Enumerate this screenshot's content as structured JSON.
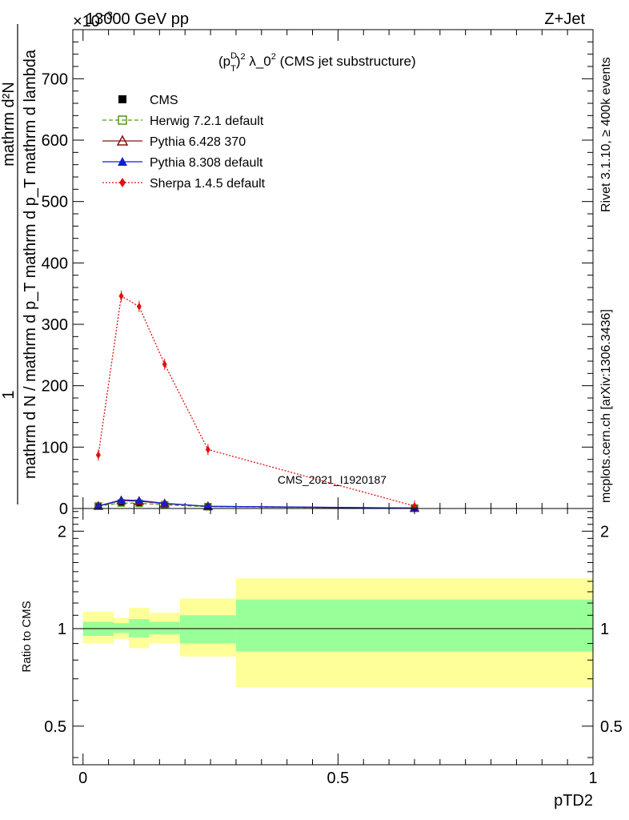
{
  "header": {
    "left": "13000 GeV pp",
    "right": "Z+Jet",
    "exponent": "×10",
    "exponent_power": "−3"
  },
  "side_labels": {
    "rivet": "Rivet 3.1.10, ≥ 400k events",
    "mcplots": "mcplots.cern.ch [arXiv:1306.3436]"
  },
  "watermark": "CMS_2021_I1920187",
  "chart_data": [
    {
      "type": "line",
      "title": "(p_T^D)^2 λ_0^2 (CMS jet substructure)",
      "title_parts": {
        "p": "(p",
        "sup": "D",
        "sub": "T",
        "close": ")",
        "sq1": "2",
        "mid": " λ_0",
        "sq2": "2",
        "rest": " (CMS jet substructure)"
      },
      "ylabel_parts": {
        "one": "1",
        "num": "mathrm d N / mathrm d p_T",
        "den": "mathrm d N / mathrm d p_T mathrm d p_T mathrm d lambda"
      },
      "ylabel_top": "mathrm d²N",
      "ylabel_bottom": "mathrm d N / mathrm d p_T mathrm d p_T mathrm d lambda",
      "xlim": [
        -0.02,
        1.0
      ],
      "ylim": [
        0,
        780
      ],
      "yticks": [
        0,
        100,
        200,
        300,
        400,
        500,
        600,
        700
      ],
      "ytick_labels": [
        "0",
        "100",
        "200",
        "300",
        "400",
        "500",
        "600",
        "700"
      ],
      "legend": [
        {
          "name": "CMS",
          "color": "#000000",
          "marker": "square-filled",
          "line": "none"
        },
        {
          "name": "Herwig 7.2.1 default",
          "color": "#4d9a1a",
          "marker": "square-open",
          "line": "dashed"
        },
        {
          "name": "Pythia 6.428 370",
          "color": "#8b1010",
          "marker": "triangle-open",
          "line": "solid"
        },
        {
          "name": "Pythia 8.308 default",
          "color": "#1020d0",
          "marker": "triangle-filled",
          "line": "solid"
        },
        {
          "name": "Sherpa 1.4.5 default",
          "color": "#e01010",
          "marker": "diamond-filled",
          "line": "dotted"
        }
      ],
      "x": [
        0.03,
        0.075,
        0.11,
        0.16,
        0.245,
        0.65
      ],
      "series": [
        {
          "name": "CMS",
          "values": [
            3.5,
            9.0,
            9.0,
            6.0,
            3.0,
            0.6
          ]
        },
        {
          "name": "Herwig 7.2.1 default",
          "values": [
            4.0,
            9.0,
            8.5,
            6.0,
            3.0,
            0.6
          ]
        },
        {
          "name": "Pythia 6.428 370",
          "values": [
            4.0,
            13.0,
            12.0,
            8.0,
            3.5,
            0.6
          ]
        },
        {
          "name": "Pythia 8.308 default",
          "values": [
            4.0,
            14.0,
            13.0,
            8.5,
            3.5,
            0.7
          ]
        },
        {
          "name": "Sherpa 1.4.5 default",
          "values": [
            87,
            346,
            329,
            235,
            96,
            4
          ]
        }
      ]
    },
    {
      "type": "area",
      "ylabel": "Ratio to CMS",
      "xlabel": "pTD2",
      "xlim": [
        -0.02,
        1.0
      ],
      "ylim": [
        0.38,
        2.35
      ],
      "yscale": "log",
      "yticks": [
        0.5,
        1,
        2
      ],
      "ytick_labels": [
        "0.5",
        "1",
        "2"
      ],
      "xticks": [
        0,
        0.5,
        1
      ],
      "xtick_labels": [
        "0",
        "0.5",
        "1"
      ],
      "reference": 1,
      "bins": [
        {
          "x0": 0.0,
          "x1": 0.06,
          "inner": [
            0.95,
            1.05
          ],
          "outer": [
            0.9,
            1.13
          ]
        },
        {
          "x0": 0.06,
          "x1": 0.09,
          "inner": [
            0.97,
            1.04
          ],
          "outer": [
            0.93,
            1.08
          ]
        },
        {
          "x0": 0.09,
          "x1": 0.13,
          "inner": [
            0.94,
            1.07
          ],
          "outer": [
            0.87,
            1.16
          ]
        },
        {
          "x0": 0.13,
          "x1": 0.19,
          "inner": [
            0.96,
            1.05
          ],
          "outer": [
            0.9,
            1.12
          ]
        },
        {
          "x0": 0.19,
          "x1": 0.3,
          "inner": [
            0.9,
            1.1
          ],
          "outer": [
            0.82,
            1.24
          ]
        },
        {
          "x0": 0.3,
          "x1": 1.0,
          "inner": [
            0.85,
            1.23
          ],
          "outer": [
            0.66,
            1.43
          ]
        }
      ],
      "band_colors": {
        "inner": "#99ff99",
        "outer": "#ffff99"
      }
    }
  ]
}
